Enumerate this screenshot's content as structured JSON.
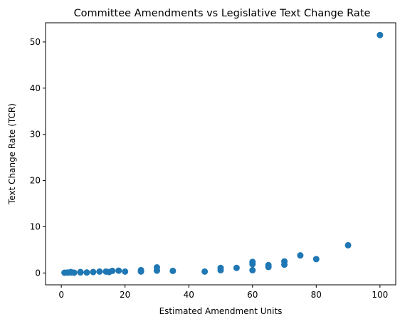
{
  "chart_data": {
    "type": "scatter",
    "title": "Committee Amendments vs Legislative Text Change Rate",
    "xlabel": "Estimated Amendment Units",
    "ylabel": "Text Change Rate (TCR)",
    "xlim": [
      -4.95,
      104.95
    ],
    "ylim": [
      -2.57,
      54.15
    ],
    "x_ticks": [
      0,
      20,
      40,
      60,
      80,
      100
    ],
    "y_ticks": [
      0,
      10,
      20,
      30,
      40,
      50
    ],
    "grid": false,
    "marker_color": "#1f77b4",
    "points": [
      {
        "x": 1,
        "y": 0.05
      },
      {
        "x": 2,
        "y": 0.08
      },
      {
        "x": 3,
        "y": 0.1
      },
      {
        "x": 3,
        "y": 0.2
      },
      {
        "x": 4,
        "y": 0.06
      },
      {
        "x": 6,
        "y": 0.12
      },
      {
        "x": 6,
        "y": 0.2
      },
      {
        "x": 8,
        "y": 0.1
      },
      {
        "x": 10,
        "y": 0.2
      },
      {
        "x": 12,
        "y": 0.3
      },
      {
        "x": 14,
        "y": 0.3
      },
      {
        "x": 15,
        "y": 0.2
      },
      {
        "x": 16,
        "y": 0.45
      },
      {
        "x": 18,
        "y": 0.5
      },
      {
        "x": 20,
        "y": 0.3
      },
      {
        "x": 25,
        "y": 0.3
      },
      {
        "x": 25,
        "y": 0.6
      },
      {
        "x": 30,
        "y": 0.5
      },
      {
        "x": 30,
        "y": 1.2
      },
      {
        "x": 35,
        "y": 0.45
      },
      {
        "x": 45,
        "y": 0.3
      },
      {
        "x": 50,
        "y": 0.6
      },
      {
        "x": 50,
        "y": 1.1
      },
      {
        "x": 55,
        "y": 1.1
      },
      {
        "x": 60,
        "y": 0.6
      },
      {
        "x": 60,
        "y": 1.9
      },
      {
        "x": 60,
        "y": 2.4
      },
      {
        "x": 65,
        "y": 1.3
      },
      {
        "x": 65,
        "y": 1.7
      },
      {
        "x": 70,
        "y": 1.8
      },
      {
        "x": 70,
        "y": 2.5
      },
      {
        "x": 75,
        "y": 3.8
      },
      {
        "x": 80,
        "y": 3.0
      },
      {
        "x": 90,
        "y": 6.0
      },
      {
        "x": 100,
        "y": 51.5
      }
    ]
  }
}
